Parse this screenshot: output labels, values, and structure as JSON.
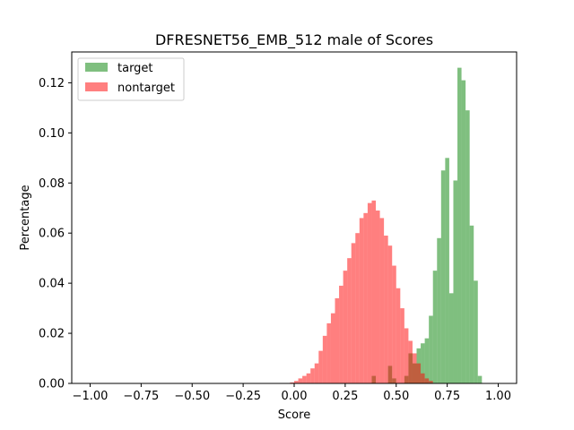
{
  "chart_data": {
    "type": "histogram",
    "title": "DFRESNET56_EMB_512 male of Scores",
    "xlabel": "Score",
    "ylabel": "Percentage",
    "xlim": [
      -1.09,
      1.09
    ],
    "ylim": [
      0,
      0.1323
    ],
    "xticks": [
      "−1.00",
      "−0.75",
      "−0.50",
      "−0.25",
      "0.00",
      "0.25",
      "0.50",
      "0.75",
      "1.00"
    ],
    "xtick_values": [
      -1.0,
      -0.75,
      -0.5,
      -0.25,
      0.0,
      0.25,
      0.5,
      0.75,
      1.0
    ],
    "yticks": [
      "0.00",
      "0.02",
      "0.04",
      "0.06",
      "0.08",
      "0.10",
      "0.12"
    ],
    "ytick_values": [
      0.0,
      0.02,
      0.04,
      0.06,
      0.08,
      0.1,
      0.12
    ],
    "grid": false,
    "legend_position": "top-left",
    "bin_width": 0.02,
    "series": [
      {
        "name": "target",
        "color": "#008000",
        "alpha": 0.5,
        "bins": [
          [
            0.38,
            0.4,
            0.003
          ],
          [
            0.46,
            0.48,
            0.007
          ],
          [
            0.48,
            0.5,
            0.002
          ],
          [
            0.54,
            0.56,
            0.003
          ],
          [
            0.56,
            0.58,
            0.012
          ],
          [
            0.58,
            0.6,
            0.008
          ],
          [
            0.6,
            0.62,
            0.014
          ],
          [
            0.62,
            0.64,
            0.016
          ],
          [
            0.64,
            0.66,
            0.018
          ],
          [
            0.66,
            0.68,
            0.027
          ],
          [
            0.68,
            0.7,
            0.045
          ],
          [
            0.7,
            0.72,
            0.058
          ],
          [
            0.72,
            0.74,
            0.085
          ],
          [
            0.74,
            0.76,
            0.09
          ],
          [
            0.76,
            0.78,
            0.036
          ],
          [
            0.78,
            0.8,
            0.081
          ],
          [
            0.8,
            0.82,
            0.126
          ],
          [
            0.82,
            0.84,
            0.121
          ],
          [
            0.84,
            0.86,
            0.109
          ],
          [
            0.86,
            0.88,
            0.063
          ],
          [
            0.88,
            0.9,
            0.041
          ],
          [
            0.9,
            0.92,
            0.003
          ]
        ]
      },
      {
        "name": "nontarget",
        "color": "#ff0000",
        "alpha": 0.5,
        "bins": [
          [
            -0.02,
            0.0,
            0.0004
          ],
          [
            0.0,
            0.02,
            0.001
          ],
          [
            0.02,
            0.04,
            0.002
          ],
          [
            0.04,
            0.06,
            0.003
          ],
          [
            0.06,
            0.08,
            0.004
          ],
          [
            0.08,
            0.1,
            0.006
          ],
          [
            0.1,
            0.12,
            0.008
          ],
          [
            0.12,
            0.14,
            0.013
          ],
          [
            0.14,
            0.16,
            0.019
          ],
          [
            0.16,
            0.18,
            0.024
          ],
          [
            0.18,
            0.2,
            0.028
          ],
          [
            0.2,
            0.22,
            0.034
          ],
          [
            0.22,
            0.24,
            0.039
          ],
          [
            0.24,
            0.26,
            0.045
          ],
          [
            0.26,
            0.28,
            0.05
          ],
          [
            0.28,
            0.3,
            0.056
          ],
          [
            0.3,
            0.32,
            0.06
          ],
          [
            0.32,
            0.34,
            0.066
          ],
          [
            0.34,
            0.36,
            0.068
          ],
          [
            0.36,
            0.38,
            0.072
          ],
          [
            0.38,
            0.4,
            0.073
          ],
          [
            0.4,
            0.42,
            0.069
          ],
          [
            0.42,
            0.44,
            0.066
          ],
          [
            0.44,
            0.46,
            0.059
          ],
          [
            0.46,
            0.48,
            0.055
          ],
          [
            0.48,
            0.5,
            0.047
          ],
          [
            0.5,
            0.52,
            0.038
          ],
          [
            0.52,
            0.54,
            0.03
          ],
          [
            0.54,
            0.56,
            0.022
          ],
          [
            0.56,
            0.58,
            0.017
          ],
          [
            0.58,
            0.6,
            0.012
          ],
          [
            0.6,
            0.62,
            0.008
          ],
          [
            0.62,
            0.64,
            0.004
          ],
          [
            0.64,
            0.66,
            0.002
          ],
          [
            0.66,
            0.68,
            0.001
          ]
        ]
      }
    ]
  }
}
